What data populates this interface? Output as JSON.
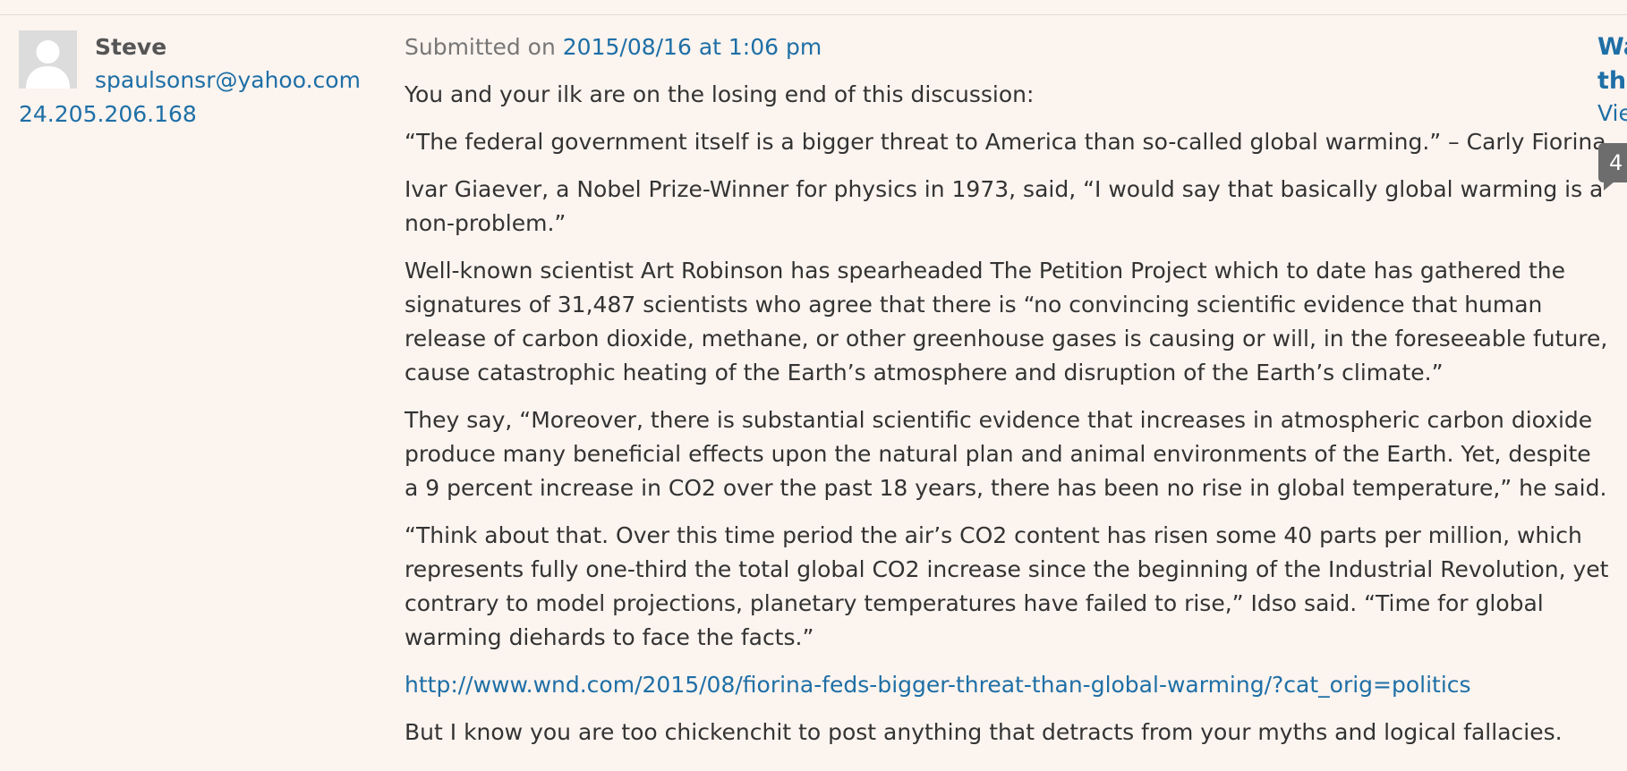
{
  "author": {
    "name": "Steve",
    "email": "spaulsonsr@yahoo.com",
    "ip": "24.205.206.168",
    "avatar_icon": "default-avatar-icon"
  },
  "comment": {
    "submitted_prefix": "Submitted on",
    "submitted_date": "2015/08/16 at 1:06 pm",
    "paragraphs": [
      [
        "You and your ilk are on the losing end of this discussion:"
      ],
      [
        "“The federal government itself is a bigger threat to America than so-called global warming.” – Carly Fiorina"
      ],
      [
        "Ivar Giaever, a Nobel Prize-Winner for physics in 1973, said, “I would say that basically global warming is a",
        "non-problem.”"
      ],
      [
        "Well-known scientist Art Robinson has spearheaded The Petition Project which to date has gathered the",
        "signatures of 31,487 scientists who agree that there is “no convincing scientific evidence that human",
        "release of carbon dioxide, methane, or other greenhouse gases is causing or will, in the foreseeable future,",
        "cause catastrophic heating of the Earth’s atmosphere and disruption of the Earth’s climate.”"
      ],
      [
        "They say, “Moreover, there is substantial scientific evidence that increases in atmospheric carbon dioxide",
        "produce many beneficial effects upon the natural plan and animal environments of the Earth. Yet, despite",
        "a 9 percent increase in CO2 over the past 18 years, there has been no rise in global temperature,” he said."
      ],
      [
        "“Think about that. Over this time period the air’s CO2 content has risen some 40 parts per million, which",
        "represents fully one-third the total global CO2 increase since the beginning of the Industrial Revolution, yet",
        "contrary to model projections, planetary temperatures have failed to rise,” Idso said. “Time for global",
        "warming diehards to face the facts.”"
      ]
    ],
    "link": "http://www.wnd.com/2015/08/fiorina-feds-bigger-threat-than-global-warming/?cat_orig=politics",
    "closing": "But I know you are too chickenchit to post anything that detracts from your myths and logical fallacies."
  },
  "post": {
    "title_line1": "Wa",
    "title_line2": "the",
    "view_link": "Vie",
    "comment_count": "4"
  },
  "colors": {
    "background": "#fcf4ef",
    "link": "#1e6fa6",
    "text": "#333333",
    "count_bubble": "#6d6d6d"
  }
}
